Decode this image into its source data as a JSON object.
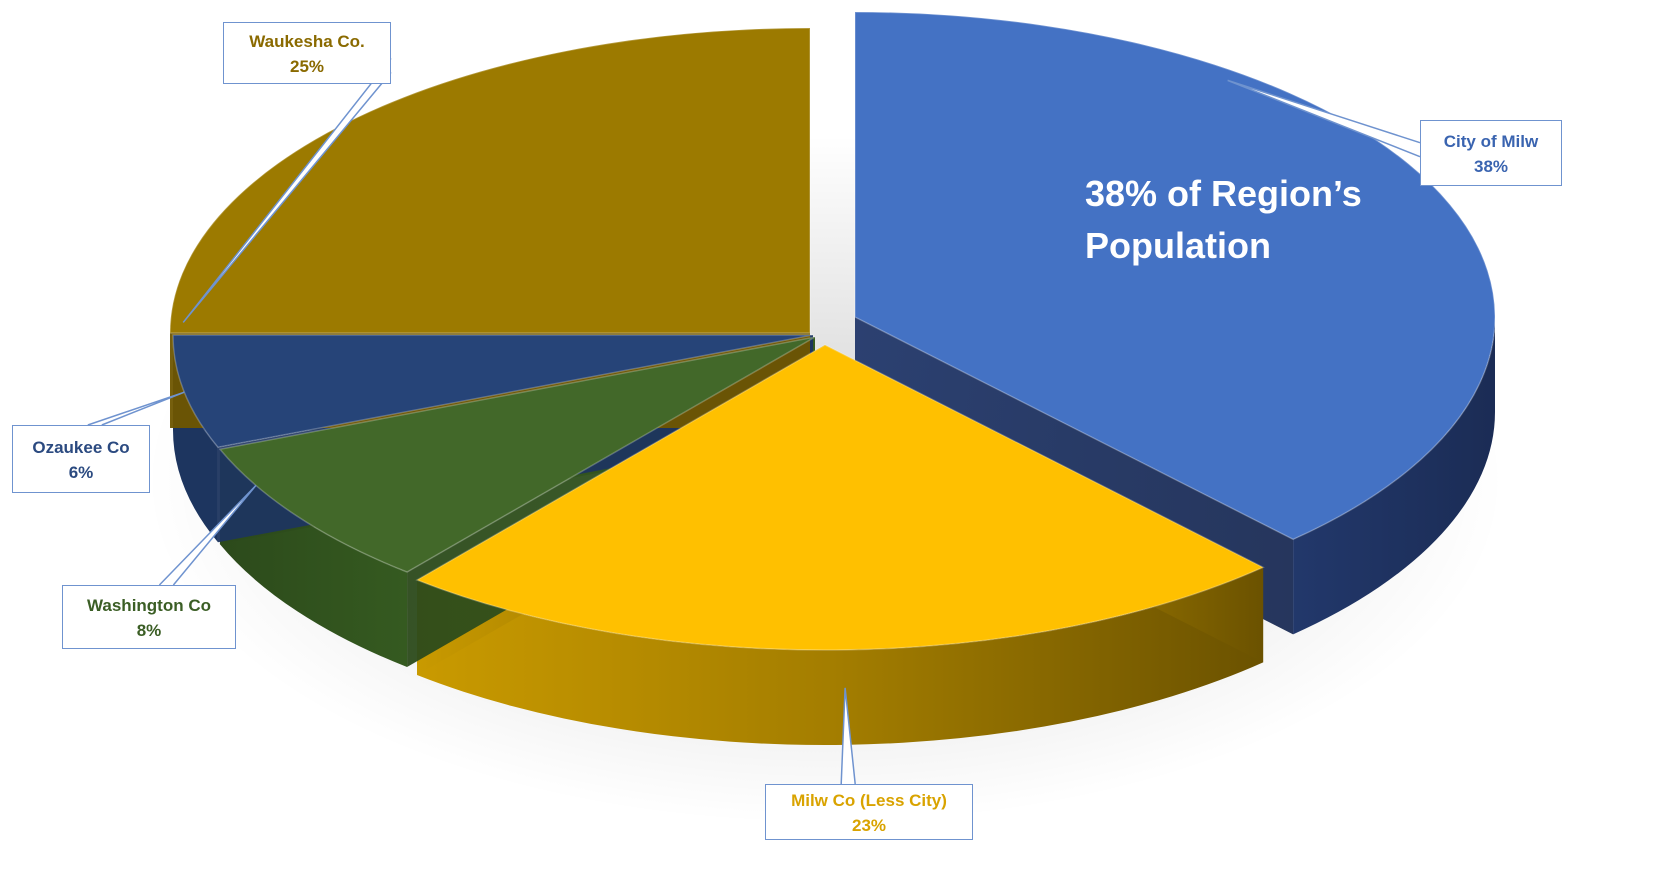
{
  "chart_data": {
    "type": "pie",
    "title": "",
    "slices": [
      {
        "label": "City of Milw",
        "value": 38,
        "value_label": "38%",
        "color": "#4472c4",
        "exploded": true
      },
      {
        "label": "Milw Co (Less City)",
        "value": 23,
        "value_label": "23%",
        "color": "#ffc000"
      },
      {
        "label": "Washington Co",
        "value": 8,
        "value_label": "8%",
        "color": "#426829"
      },
      {
        "label": "Ozaukee Co",
        "value": 6,
        "value_label": "6%",
        "color": "#264478"
      },
      {
        "label": "Waukesha Co.",
        "value": 25,
        "value_label": "25%",
        "color": "#9c7a00"
      }
    ],
    "annotation": {
      "line1": "38% of Region’s",
      "line2": "Population"
    },
    "label_text_colors": {
      "City of Milw": "#3a64b0",
      "Milw Co (Less City)": "#d9a300",
      "Washington Co": "#3b5e25",
      "Ozaukee Co": "#2b4a80",
      "Waukesha Co.": "#8a6a00"
    },
    "style": "3d-exploded-pie"
  }
}
